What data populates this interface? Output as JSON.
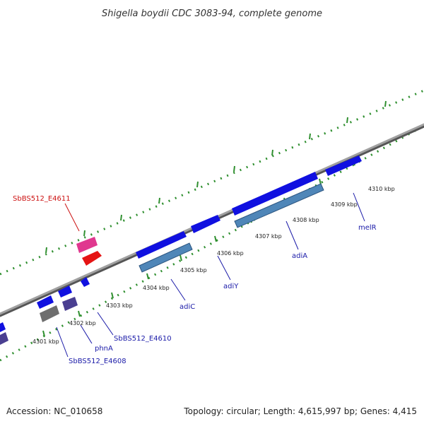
{
  "title": "Shigella boydii CDC 3083-94, complete genome",
  "footer": {
    "accession": "Accession: NC_010658",
    "summary": "Topology: circular; Length: 4,615,997 bp; Genes: 4,415"
  },
  "colors": {
    "backbone": "#8a8a8a",
    "tick_green": "#2f8f2f",
    "gene_blue": "#1010e0",
    "gene_steel": "#4f86b8",
    "gene_pink": "#e0388f",
    "gene_red": "#e51414",
    "gene_gray": "#6e6e6e",
    "gene_purple": "#4a3f91",
    "label_blue": "#1a1aa8",
    "label_red": "#cc1111"
  },
  "kbp_labels": [
    "4301 kbp",
    "4302 kbp",
    "4303 kbp",
    "4304 kbp",
    "4305 kbp",
    "4306 kbp",
    "4307 kbp",
    "4308 kbp",
    "4309 kbp",
    "4310 kbp"
  ],
  "gene_labels": {
    "sbbs512_e4611": "SbBS512_E4611",
    "sbbs512_e4608": "SbBS512_E4608",
    "phna": "phnA",
    "sbbs512_e4610": "SbBS512_E4610",
    "adic": "adiC",
    "adiy": "adiY",
    "adia": "adiA",
    "melr": "melR"
  }
}
